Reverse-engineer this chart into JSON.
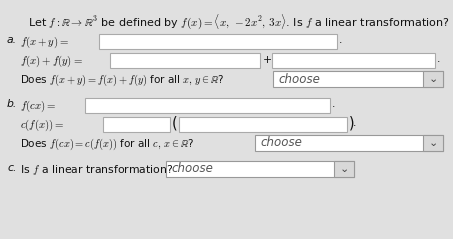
{
  "bg_color": "#e0e0e0",
  "white": "#ffffff",
  "text_color": "#111111",
  "border_color": "#aaaaaa",
  "dropdown_bg": "#f5f5f5",
  "dropdown_arrow_bg": "#cccccc",
  "title": "Let $f : \\mathbb{R} \\to \\mathbb{R}^3$ be defined by $f(x) = \\langle x,\\, -2x^2,\\, 3x\\rangle$. Is $f$ a linear transformation?",
  "a_label": "a.",
  "b_label": "b.",
  "c_label": "c.",
  "fx_plus_y": "$f(x + y) =$",
  "fx_plus_fy": "$f(x) + f(y) =$",
  "does_a": "Does $f(x + y) = f(x) + f(y)$ for all $x,\\, y \\in \\mathbb{R}$?",
  "fcx": "$f(cx) =$",
  "cffx": "$c(f(x)) =$",
  "does_b": "Does $f(cx) = c(f(x))$ for all $c,\\, x \\in \\mathbb{R}$?",
  "is_linear": "Is $f$ a linear transformation?",
  "choose": "choose",
  "plus_sign": "+",
  "period": ".",
  "fig_w": 4.53,
  "fig_h": 2.39,
  "dpi": 100
}
